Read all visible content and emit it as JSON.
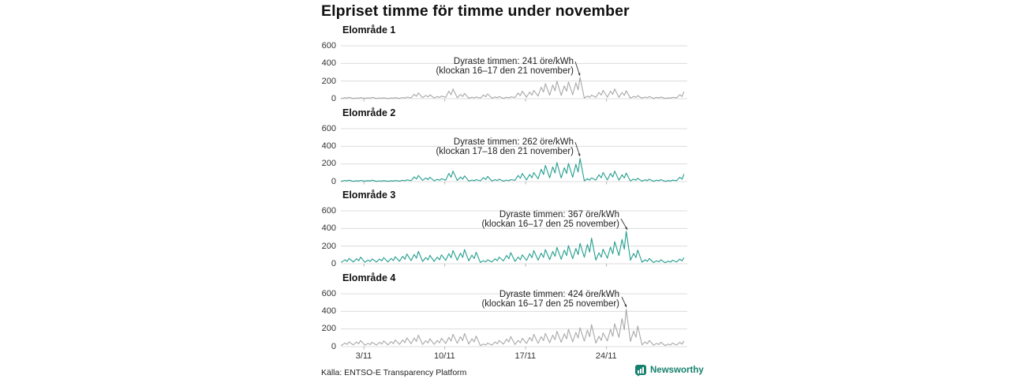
{
  "title": "Elpriset timme för timme under november",
  "footer": {
    "source": "Källa: ENTSO-E Transparency Platform",
    "brand": "Newsworthy"
  },
  "colors": {
    "teal_line": "#229e8f",
    "gray_line": "#a8a8a8",
    "grid": "#dcdcdc",
    "tick": "#b5b5b5",
    "brand_teal": "#17806e",
    "arrow": "#333333"
  },
  "chart_data": {
    "type": "line",
    "unit": "öre/kWh",
    "title": "Elpriset timme för timme under november",
    "x_axis": {
      "ticks": [
        "3/11",
        "10/11",
        "17/11",
        "24/11"
      ],
      "tick_days": [
        3,
        10,
        17,
        24
      ],
      "range_days": [
        1,
        31
      ],
      "samples_per_day": 4,
      "grid": false
    },
    "y_axis": {
      "ticks": [
        "600",
        "400",
        "200",
        "0"
      ],
      "tick_values": [
        600,
        400,
        200,
        0
      ],
      "ylim": [
        0,
        600
      ],
      "grid": true
    },
    "series": [
      {
        "label": "Elområde 1",
        "color_key": "gray_line",
        "max_value": 241,
        "annotation": {
          "line1": "Dyraste timmen: 241 öre/kWh",
          "line2": "(klockan 16–17 den 21 november)"
        },
        "values": [
          4,
          12,
          7,
          15,
          3,
          9,
          5,
          12,
          4,
          11,
          6,
          15,
          3,
          8,
          5,
          10,
          3,
          9,
          6,
          12,
          4,
          14,
          8,
          18,
          10,
          50,
          28,
          65,
          12,
          38,
          20,
          45,
          8,
          24,
          14,
          30,
          15,
          85,
          45,
          110,
          12,
          48,
          25,
          60,
          5,
          16,
          9,
          20,
          8,
          42,
          22,
          55,
          5,
          20,
          11,
          25,
          4,
          16,
          9,
          20,
          14,
          65,
          35,
          85,
          18,
          75,
          40,
          95,
          30,
          130,
          75,
          170,
          40,
          155,
          90,
          200,
          38,
          145,
          85,
          190,
          45,
          180,
          100,
          241,
          8,
          30,
          16,
          40,
          16,
          72,
          40,
          95,
          18,
          85,
          48,
          110,
          15,
          70,
          38,
          90,
          6,
          26,
          14,
          35,
          5,
          19,
          10,
          25,
          4,
          15,
          8,
          20,
          3,
          11,
          6,
          15,
          10,
          45,
          25,
          80
        ]
      },
      {
        "label": "Elområde 2",
        "color_key": "teal_line",
        "max_value": 262,
        "annotation": {
          "line1": "Dyraste timmen: 262 öre/kWh",
          "line2": "(klockan 17–18 den 21 november)"
        },
        "values": [
          5,
          13,
          8,
          16,
          4,
          10,
          6,
          13,
          5,
          12,
          7,
          16,
          3,
          9,
          5,
          11,
          4,
          10,
          6,
          13,
          5,
          15,
          9,
          20,
          11,
          54,
          30,
          70,
          13,
          41,
          22,
          49,
          9,
          26,
          15,
          32,
          16,
          92,
          49,
          119,
          13,
          52,
          27,
          65,
          6,
          17,
          10,
          22,
          9,
          45,
          24,
          59,
          6,
          22,
          12,
          27,
          5,
          17,
          10,
          22,
          15,
          70,
          38,
          92,
          19,
          81,
          43,
          103,
          32,
          140,
          81,
          184,
          43,
          167,
          97,
          216,
          41,
          157,
          92,
          205,
          49,
          195,
          108,
          262,
          9,
          32,
          17,
          43,
          17,
          78,
          43,
          103,
          19,
          92,
          52,
          119,
          16,
          76,
          41,
          97,
          7,
          28,
          15,
          38,
          5,
          21,
          11,
          27,
          4,
          16,
          9,
          22,
          3,
          12,
          6,
          16,
          11,
          49,
          27,
          86
        ]
      },
      {
        "label": "Elområde 3",
        "color_key": "teal_line",
        "max_value": 367,
        "annotation": {
          "line1": "Dyraste timmen: 367 öre/kWh",
          "line2": "(klockan 16–17 den 25 november)"
        },
        "values": [
          18,
          45,
          27,
          60,
          20,
          56,
          34,
          75,
          16,
          41,
          25,
          55,
          19,
          53,
          32,
          70,
          21,
          60,
          36,
          80,
          28,
          83,
          50,
          110,
          35,
          105,
          63,
          140,
          26,
          71,
          43,
          95,
          27,
          75,
          45,
          100,
          38,
          113,
          68,
          150,
          40,
          120,
          72,
          160,
          33,
          98,
          59,
          130,
          14,
          34,
          20,
          45,
          20,
          56,
          34,
          75,
          31,
          94,
          56,
          125,
          27,
          75,
          45,
          100,
          38,
          113,
          68,
          150,
          40,
          120,
          72,
          160,
          46,
          139,
          83,
          185,
          51,
          154,
          92,
          205,
          58,
          173,
          104,
          230,
          73,
          218,
          131,
          290,
          41,
          124,
          74,
          165,
          63,
          188,
          113,
          250,
          92,
          275,
          165,
          367,
          39,
          116,
          70,
          155,
          18,
          45,
          27,
          60,
          13,
          34,
          20,
          45,
          12,
          30,
          18,
          40,
          20,
          53,
          32,
          70
        ]
      },
      {
        "label": "Elområde 4",
        "color_key": "gray_line",
        "max_value": 424,
        "annotation": {
          "line1": "Dyraste timmen: 424 öre/kWh",
          "line2": "(klockan 16–17 den 25 november)"
        },
        "values": [
          16,
          41,
          25,
          55,
          19,
          53,
          32,
          70,
          15,
          38,
          23,
          50,
          18,
          49,
          29,
          65,
          20,
          56,
          34,
          75,
          26,
          75,
          45,
          100,
          33,
          98,
          59,
          130,
          24,
          68,
          41,
          90,
          26,
          71,
          43,
          95,
          36,
          105,
          63,
          140,
          38,
          113,
          68,
          150,
          30,
          90,
          54,
          120,
          12,
          30,
          18,
          40,
          18,
          53,
          32,
          70,
          29,
          86,
          52,
          115,
          24,
          71,
          43,
          95,
          36,
          105,
          63,
          140,
          38,
          113,
          68,
          150,
          44,
          131,
          79,
          175,
          49,
          146,
          88,
          195,
          54,
          161,
          97,
          215,
          63,
          188,
          113,
          250,
          39,
          116,
          70,
          155,
          65,
          195,
          117,
          260,
          106,
          318,
          191,
          424,
          59,
          176,
          106,
          235,
          21,
          53,
          32,
          70,
          15,
          38,
          23,
          50,
          12,
          30,
          18,
          40,
          18,
          49,
          29,
          65
        ]
      }
    ]
  }
}
